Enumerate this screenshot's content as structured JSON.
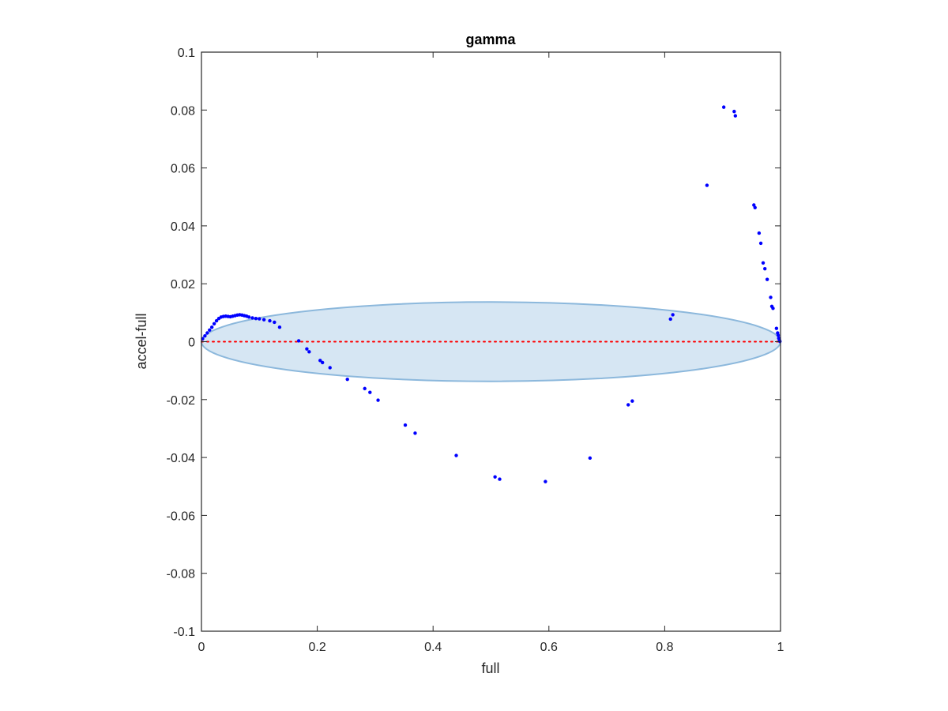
{
  "chart_data": {
    "type": "scatter",
    "title": "gamma",
    "xlabel": "full",
    "ylabel": "accel-full",
    "xlim": [
      0,
      1
    ],
    "ylim": [
      -0.1,
      0.1
    ],
    "x_ticks": [
      0,
      0.2,
      0.4,
      0.6,
      0.8,
      1
    ],
    "x_tick_labels": [
      "0",
      "0.2",
      "0.4",
      "0.6",
      "0.8",
      "1"
    ],
    "y_ticks": [
      -0.1,
      -0.08,
      -0.06,
      -0.04,
      -0.02,
      0,
      0.02,
      0.04,
      0.06,
      0.08,
      0.1
    ],
    "y_tick_labels": [
      "-0.1",
      "-0.08",
      "-0.06",
      "-0.04",
      "-0.02",
      "0",
      "0.02",
      "0.04",
      "0.06",
      "0.08",
      "0.1"
    ],
    "grid": false,
    "colors": {
      "points": "#0000ff",
      "zero_line": "#ff0000",
      "ellipse_fill": "#d6e6f3",
      "ellipse_stroke": "#8cb8dc",
      "axes": "#262626"
    },
    "reference_line": {
      "y": 0,
      "style": "dotted"
    },
    "ellipse": {
      "cx": 0.5,
      "cy": 0,
      "rx": 0.5,
      "ry": 0.0137
    },
    "series": [
      {
        "points": [
          [
            0.002,
            0.001
          ],
          [
            0.006,
            0.002
          ],
          [
            0.01,
            0.003
          ],
          [
            0.014,
            0.004
          ],
          [
            0.018,
            0.005
          ],
          [
            0.022,
            0.0062
          ],
          [
            0.026,
            0.0072
          ],
          [
            0.03,
            0.008
          ],
          [
            0.034,
            0.0085
          ],
          [
            0.038,
            0.0087
          ],
          [
            0.042,
            0.0088
          ],
          [
            0.046,
            0.0087
          ],
          [
            0.05,
            0.0086
          ],
          [
            0.054,
            0.0088
          ],
          [
            0.058,
            0.009
          ],
          [
            0.062,
            0.0092
          ],
          [
            0.066,
            0.0093
          ],
          [
            0.07,
            0.0092
          ],
          [
            0.074,
            0.009
          ],
          [
            0.078,
            0.0088
          ],
          [
            0.082,
            0.0085
          ],
          [
            0.088,
            0.0082
          ],
          [
            0.094,
            0.008
          ],
          [
            0.1,
            0.0079
          ],
          [
            0.108,
            0.0076
          ],
          [
            0.118,
            0.0072
          ],
          [
            0.126,
            0.0067
          ],
          [
            0.135,
            0.005
          ],
          [
            0.168,
            0.0003
          ],
          [
            0.182,
            -0.0025
          ],
          [
            0.186,
            -0.0035
          ],
          [
            0.205,
            -0.0065
          ],
          [
            0.209,
            -0.0072
          ],
          [
            0.222,
            -0.009
          ],
          [
            0.252,
            -0.013
          ],
          [
            0.282,
            -0.0162
          ],
          [
            0.291,
            -0.0175
          ],
          [
            0.305,
            -0.0202
          ],
          [
            0.352,
            -0.0288
          ],
          [
            0.369,
            -0.0316
          ],
          [
            0.44,
            -0.0393
          ],
          [
            0.507,
            -0.0467
          ],
          [
            0.515,
            -0.0475
          ],
          [
            0.594,
            -0.0483
          ],
          [
            0.671,
            -0.0402
          ],
          [
            0.737,
            -0.0218
          ],
          [
            0.744,
            -0.0205
          ],
          [
            0.81,
            0.0078
          ],
          [
            0.814,
            0.0093
          ],
          [
            0.873,
            0.054
          ],
          [
            0.902,
            0.081
          ],
          [
            0.92,
            0.0795
          ],
          [
            0.922,
            0.078
          ],
          [
            0.954,
            0.0472
          ],
          [
            0.956,
            0.0463
          ],
          [
            0.963,
            0.0375
          ],
          [
            0.966,
            0.034
          ],
          [
            0.97,
            0.0272
          ],
          [
            0.973,
            0.0252
          ],
          [
            0.977,
            0.0215
          ],
          [
            0.983,
            0.0153
          ],
          [
            0.985,
            0.0122
          ],
          [
            0.987,
            0.0115
          ],
          [
            0.993,
            0.0046
          ],
          [
            0.995,
            0.003
          ],
          [
            0.996,
            0.0022
          ],
          [
            0.997,
            0.0012
          ],
          [
            0.998,
            0.0006
          ],
          [
            0.999,
            0.0001
          ]
        ]
      }
    ]
  }
}
